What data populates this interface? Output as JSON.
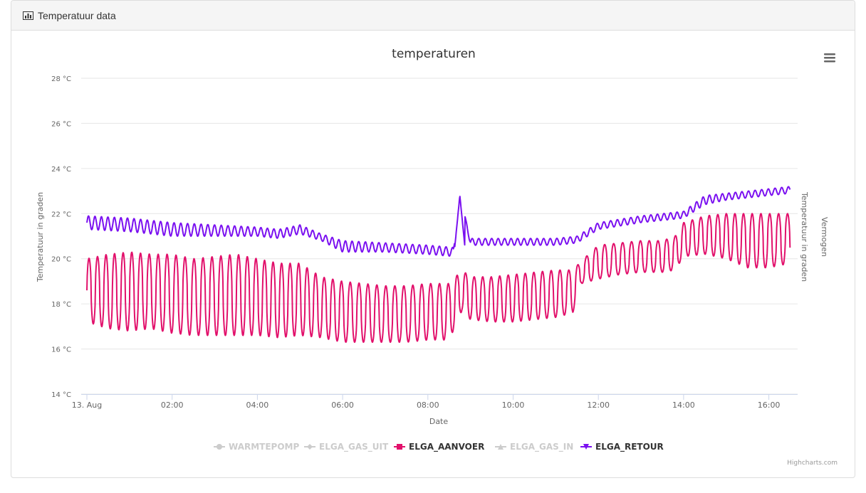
{
  "panel": {
    "title": "Temperatuur data",
    "title_icon": "bar-chart-icon"
  },
  "chart_data": {
    "type": "line",
    "title": "temperaturen",
    "xlabel": "Date",
    "ylabel": "Temperatuur in graden",
    "ylabel_right": [
      "Vermogen",
      "Temperatuur in graden"
    ],
    "ylim": [
      14,
      28
    ],
    "yticks": [
      "14 °C",
      "16 °C",
      "18 °C",
      "20 °C",
      "22 °C",
      "24 °C",
      "26 °C",
      "28 °C"
    ],
    "xticks": [
      "13. Aug",
      "02:00",
      "04:00",
      "06:00",
      "08:00",
      "10:00",
      "12:00",
      "14:00",
      "16:00"
    ],
    "xrange_hours": [
      0,
      16.5
    ],
    "grid": true,
    "legend_placement": "bottom-center",
    "credits": "Highcharts.com",
    "menu_icon": "hamburger-menu-icon",
    "series": [
      {
        "name": "WARMTEPOMP",
        "visible": false,
        "color": "#cccccc",
        "marker": "circle"
      },
      {
        "name": "ELGA_GAS_UIT",
        "visible": false,
        "color": "#cccccc",
        "marker": "diamond"
      },
      {
        "name": "ELGA_AANVOER",
        "visible": true,
        "color": "#e2106b",
        "marker": "square",
        "envelope": [
          [
            0.0,
            17.2,
            20.0
          ],
          [
            0.5,
            16.9,
            20.2
          ],
          [
            1.0,
            16.8,
            20.3
          ],
          [
            1.5,
            16.9,
            20.2
          ],
          [
            2.0,
            16.7,
            20.2
          ],
          [
            2.5,
            16.6,
            20.0
          ],
          [
            3.0,
            16.6,
            20.1
          ],
          [
            3.5,
            16.6,
            20.2
          ],
          [
            4.0,
            16.6,
            20.0
          ],
          [
            4.5,
            16.5,
            19.8
          ],
          [
            5.0,
            16.6,
            19.8
          ],
          [
            5.5,
            16.5,
            19.2
          ],
          [
            6.0,
            16.3,
            19.0
          ],
          [
            6.5,
            16.3,
            18.9
          ],
          [
            7.0,
            16.3,
            18.8
          ],
          [
            7.5,
            16.3,
            18.8
          ],
          [
            8.0,
            16.4,
            18.9
          ],
          [
            8.5,
            16.4,
            18.9
          ],
          [
            8.8,
            17.7,
            19.5
          ],
          [
            9.0,
            17.3,
            19.2
          ],
          [
            9.5,
            17.2,
            19.2
          ],
          [
            10.0,
            17.2,
            19.3
          ],
          [
            10.5,
            17.3,
            19.4
          ],
          [
            11.0,
            17.4,
            19.5
          ],
          [
            11.4,
            17.6,
            19.5
          ],
          [
            11.6,
            18.9,
            19.9
          ],
          [
            12.0,
            19.1,
            20.6
          ],
          [
            12.5,
            19.3,
            20.7
          ],
          [
            13.0,
            19.4,
            20.8
          ],
          [
            13.5,
            19.4,
            20.8
          ],
          [
            13.8,
            19.5,
            21.0
          ],
          [
            14.0,
            20.1,
            21.6
          ],
          [
            14.5,
            20.2,
            21.9
          ],
          [
            15.0,
            20.0,
            22.0
          ],
          [
            15.5,
            19.6,
            22.0
          ],
          [
            16.0,
            19.6,
            22.0
          ],
          [
            16.5,
            19.8,
            22.0
          ]
        ]
      },
      {
        "name": "ELGA_GAS_IN",
        "visible": false,
        "color": "#cccccc",
        "marker": "triangle"
      },
      {
        "name": "ELGA_RETOUR",
        "visible": true,
        "color": "#7a10f0",
        "marker": "triangle-down",
        "envelope": [
          [
            0.0,
            21.3,
            21.9
          ],
          [
            1.0,
            21.2,
            21.8
          ],
          [
            1.5,
            21.1,
            21.7
          ],
          [
            2.0,
            21.0,
            21.6
          ],
          [
            3.0,
            21.0,
            21.5
          ],
          [
            4.0,
            21.0,
            21.4
          ],
          [
            4.5,
            20.9,
            21.3
          ],
          [
            5.0,
            21.1,
            21.5
          ],
          [
            5.5,
            20.8,
            21.1
          ],
          [
            6.0,
            20.3,
            20.8
          ],
          [
            7.0,
            20.3,
            20.7
          ],
          [
            8.0,
            20.2,
            20.6
          ],
          [
            8.6,
            20.1,
            20.5
          ],
          [
            8.75,
            22.8,
            22.8
          ],
          [
            9.0,
            20.6,
            20.9
          ],
          [
            9.5,
            20.6,
            20.9
          ],
          [
            10.0,
            20.6,
            20.9
          ],
          [
            11.0,
            20.6,
            20.9
          ],
          [
            11.5,
            20.7,
            21.0
          ],
          [
            12.0,
            21.3,
            21.6
          ],
          [
            13.0,
            21.6,
            21.9
          ],
          [
            14.0,
            21.8,
            22.1
          ],
          [
            14.5,
            22.4,
            22.8
          ],
          [
            15.0,
            22.6,
            22.9
          ],
          [
            16.0,
            22.8,
            23.1
          ],
          [
            16.5,
            22.9,
            23.2
          ]
        ]
      }
    ]
  }
}
